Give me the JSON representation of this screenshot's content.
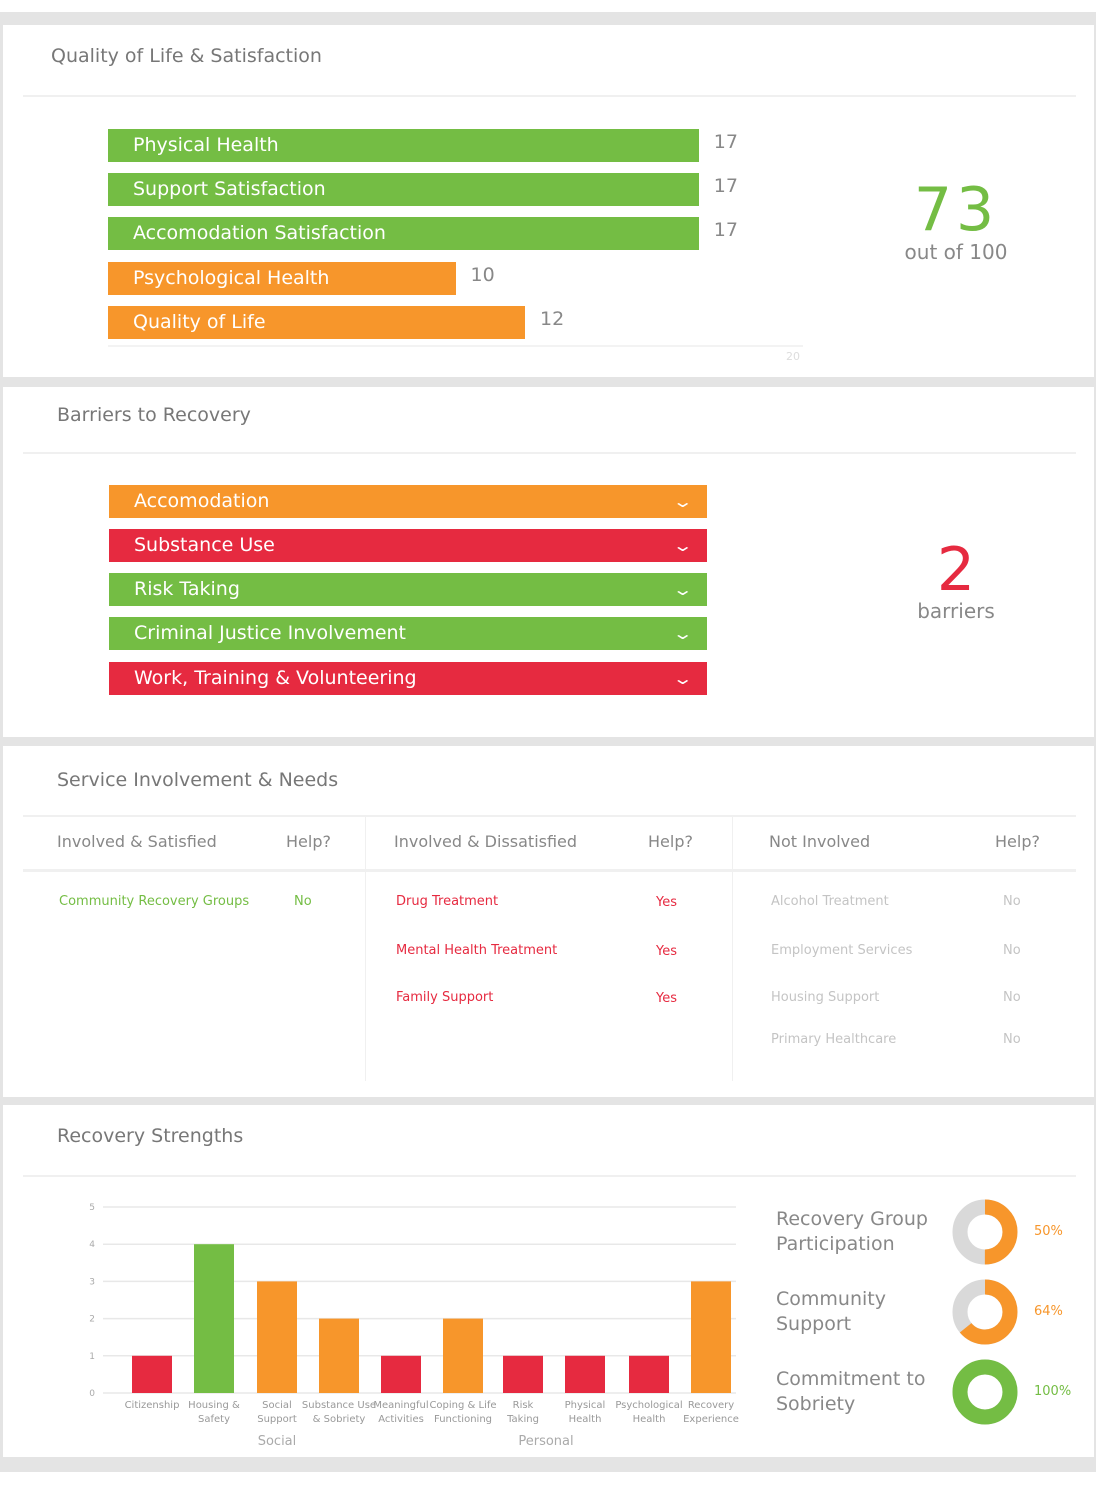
{
  "colors": {
    "green": "#74bd44",
    "orange": "#f7962b",
    "red": "#e62a40",
    "grey": "#d9d9d9"
  },
  "quality": {
    "title": "Quality of Life & Satisfaction",
    "max_label": "20",
    "max": 20,
    "bars": [
      {
        "label": "Physical Health",
        "value": 17,
        "color": "green"
      },
      {
        "label": "Support Satisfaction",
        "value": 17,
        "color": "green"
      },
      {
        "label": "Accomodation Satisfaction",
        "value": 17,
        "color": "green"
      },
      {
        "label": "Psychological Health",
        "value": 10,
        "color": "orange"
      },
      {
        "label": "Quality of Life",
        "value": 12,
        "color": "orange"
      }
    ],
    "score": "73",
    "score_sub": "out of 100"
  },
  "barriers": {
    "title": "Barriers to Recovery",
    "items": [
      {
        "label": "Accomodation",
        "color": "orange"
      },
      {
        "label": "Substance Use",
        "color": "red"
      },
      {
        "label": "Risk Taking",
        "color": "green"
      },
      {
        "label": "Criminal Justice Involvement",
        "color": "green"
      },
      {
        "label": "Work, Training & Volunteering",
        "color": "red"
      }
    ],
    "chevron_icon": "chevron-down-icon",
    "count": "2",
    "count_sub": "barriers"
  },
  "services": {
    "title": "Service Involvement & Needs",
    "columns": [
      {
        "header": "Involved & Satisfied",
        "help": "Help?",
        "color": "#74bd44",
        "rows": [
          [
            "Community Recovery Groups",
            "No"
          ]
        ]
      },
      {
        "header": "Involved & Dissatisfied",
        "help": "Help?",
        "color": "#e62a40",
        "rows": [
          [
            "Drug Treatment",
            "Yes"
          ],
          [
            "Mental Health Treatment",
            "Yes"
          ],
          [
            "Family Support",
            "Yes"
          ]
        ]
      },
      {
        "header": "Not Involved",
        "help": "Help?",
        "color": "#c4c4c4",
        "rows": [
          [
            "Alcohol Treatment",
            "No"
          ],
          [
            "Employment Services",
            "No"
          ],
          [
            "Housing Support",
            "No"
          ],
          [
            "Primary Healthcare",
            "No"
          ]
        ]
      }
    ]
  },
  "strengths": {
    "title": "Recovery Strengths",
    "chart_data": {
      "type": "bar",
      "ylim": [
        0,
        5
      ],
      "yticks": [
        "0",
        "1",
        "2",
        "3",
        "4",
        "5"
      ],
      "grid": true,
      "categories": [
        "Citizenship",
        "Housing & Safety",
        "Social Support",
        "Substance Use & Sobriety",
        "Meaningful Activities",
        "Coping & Life Functioning",
        "Risk Taking",
        "Physical Health",
        "Psychological Health",
        "Recovery Experience"
      ],
      "category_lines": [
        [
          "Citizenship"
        ],
        [
          "Housing &",
          "Safety"
        ],
        [
          "Social",
          "Support"
        ],
        [
          "Substance Use",
          "& Sobriety"
        ],
        [
          "Meaningful",
          "Activities"
        ],
        [
          "Coping & Life",
          "Functioning"
        ],
        [
          "Risk",
          "Taking"
        ],
        [
          "Physical",
          "Health"
        ],
        [
          "Psychological",
          "Health"
        ],
        [
          "Recovery",
          "Experience"
        ]
      ],
      "values": [
        1,
        4,
        3,
        2,
        1,
        2,
        1,
        1,
        1,
        3
      ],
      "bar_colors": [
        "red",
        "green",
        "orange",
        "orange",
        "red",
        "orange",
        "red",
        "red",
        "red",
        "orange"
      ],
      "groups": [
        {
          "label": "Social"
        },
        {
          "label": "Personal"
        }
      ]
    },
    "donuts": [
      {
        "label_lines": [
          "Recovery Group",
          "Participation"
        ],
        "value": 50,
        "text": "50%",
        "color": "orange"
      },
      {
        "label_lines": [
          "Community",
          "Support"
        ],
        "value": 64,
        "text": "64%",
        "color": "orange"
      },
      {
        "label_lines": [
          "Commitment to",
          "Sobriety"
        ],
        "value": 100,
        "text": "100%",
        "color": "green"
      }
    ]
  }
}
